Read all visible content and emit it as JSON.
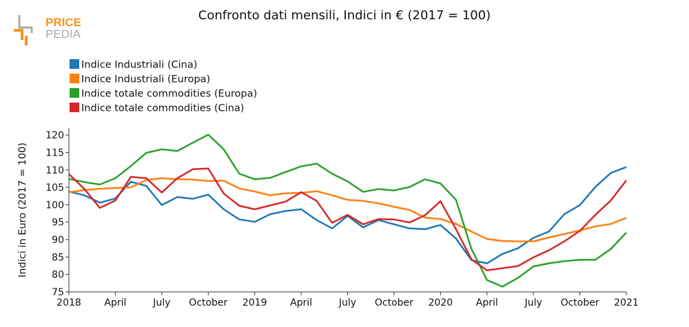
{
  "brand": {
    "line1": "PRICE",
    "line2": "PEDIA",
    "colors": {
      "primary": "#f7941d",
      "secondary": "#a7a9ac"
    }
  },
  "chart_data": {
    "type": "line",
    "title": "Confronto dati mensili, Indici in € (2017 = 100)",
    "xlabel": "",
    "ylabel": "Indici in Euro (2017 = 100)",
    "ylim": [
      75,
      122
    ],
    "yticks": [
      75,
      80,
      85,
      90,
      95,
      100,
      105,
      110,
      115,
      120
    ],
    "x_month_index": [
      0,
      1,
      2,
      3,
      4,
      5,
      6,
      7,
      8,
      9,
      10,
      11,
      12,
      13,
      14,
      15,
      16,
      17,
      18,
      19,
      20,
      21,
      22,
      23,
      24,
      25,
      26,
      27,
      28,
      29,
      30,
      31,
      32,
      33,
      34,
      35,
      36
    ],
    "xticks": [
      {
        "month": 0,
        "label": "2018"
      },
      {
        "month": 3,
        "label": "April"
      },
      {
        "month": 6,
        "label": "July"
      },
      {
        "month": 9,
        "label": "October"
      },
      {
        "month": 12,
        "label": "2019"
      },
      {
        "month": 15,
        "label": "April"
      },
      {
        "month": 18,
        "label": "July"
      },
      {
        "month": 21,
        "label": "October"
      },
      {
        "month": 24,
        "label": "2020"
      },
      {
        "month": 27,
        "label": "April"
      },
      {
        "month": 30,
        "label": "July"
      },
      {
        "month": 33,
        "label": "October"
      },
      {
        "month": 36,
        "label": "2021"
      }
    ],
    "legend_position": "top-left",
    "series": [
      {
        "name": "Indice Industriali (Cina)",
        "color": "#1f77b4",
        "values": [
          103.8,
          102.7,
          100.6,
          101.8,
          106.6,
          105.4,
          99.9,
          102.2,
          101.7,
          102.9,
          98.7,
          95.8,
          95.1,
          97.3,
          98.2,
          98.7,
          95.6,
          93.2,
          96.8,
          93.5,
          95.6,
          94.4,
          93.2,
          93.0,
          94.2,
          90.3,
          84.1,
          83.2,
          85.9,
          87.5,
          90.5,
          92.3,
          97.3,
          99.9,
          105.1,
          109.1,
          110.8
        ]
      },
      {
        "name": "Indice Industriali (Europa)",
        "color": "#ff7f0e",
        "values": [
          103.6,
          104.2,
          104.6,
          104.8,
          105.0,
          107.1,
          107.6,
          107.3,
          107.2,
          106.8,
          106.9,
          104.7,
          103.8,
          102.7,
          103.3,
          103.4,
          103.9,
          102.7,
          101.4,
          101.1,
          100.4,
          99.4,
          98.5,
          96.3,
          95.9,
          94.5,
          92.3,
          90.2,
          89.6,
          89.5,
          89.5,
          90.6,
          91.6,
          92.6,
          93.8,
          94.5,
          96.2
        ]
      },
      {
        "name": "Indice totale commodities (Europa)",
        "color": "#2ca02c",
        "values": [
          107.4,
          106.5,
          105.8,
          107.6,
          111.1,
          114.9,
          115.9,
          115.4,
          117.8,
          120.1,
          115.9,
          108.9,
          107.3,
          107.7,
          109.4,
          111.0,
          111.8,
          108.9,
          106.7,
          103.7,
          104.5,
          104.1,
          105.1,
          107.3,
          106.1,
          101.4,
          87.3,
          78.4,
          76.5,
          79.0,
          82.3,
          83.2,
          83.8,
          84.2,
          84.2,
          87.3,
          92.0
        ]
      },
      {
        "name": "Indice totale commodities (Cina)",
        "color": "#d62728",
        "values": [
          108.8,
          104.5,
          99.1,
          101.2,
          108.0,
          107.6,
          103.5,
          107.6,
          110.2,
          110.4,
          103.2,
          99.7,
          98.7,
          99.8,
          100.9,
          103.6,
          101.1,
          94.8,
          97.1,
          94.4,
          95.9,
          95.8,
          94.9,
          97.0,
          101.0,
          93.0,
          84.3,
          81.2,
          81.8,
          82.4,
          84.9,
          86.9,
          89.5,
          92.5,
          97.1,
          101.2,
          107.0
        ]
      }
    ]
  }
}
